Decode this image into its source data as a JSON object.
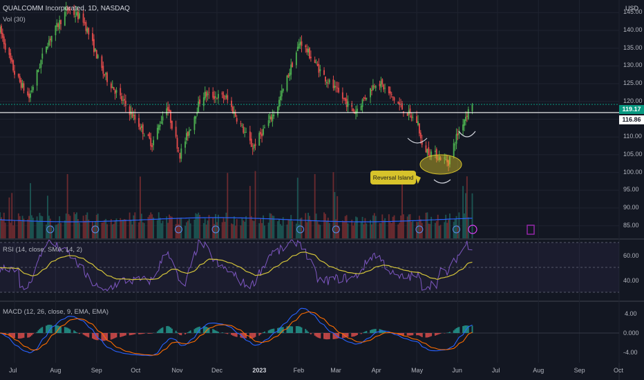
{
  "header": {
    "title": "QUALCOMM Incorporated, 1D, NASDAQ",
    "volume_label": "Vol (30)",
    "currency": "USD"
  },
  "price_axis": {
    "ticks": [
      "145.00",
      "140.00",
      "135.00",
      "130.00",
      "125.00",
      "120.00",
      "115.00",
      "110.00",
      "105.00",
      "100.00",
      "95.00",
      "90.00",
      "85.00"
    ],
    "last_price": "119.17",
    "level_price": "116.86"
  },
  "rsi_panel": {
    "title": "RSI (14, close, SMA, 14, 2)",
    "ticks": [
      "60.00",
      "40.00"
    ]
  },
  "macd_panel": {
    "title": "MACD (12, 26, close, 9, EMA, EMA)",
    "ticks": [
      "4.00",
      "0.000",
      "-4.00"
    ]
  },
  "annotation": {
    "text": "Reversal Island"
  },
  "time_axis": {
    "labels": [
      "Jul",
      "Aug",
      "Sep",
      "Oct",
      "Nov",
      "Dec",
      "2023",
      "Feb",
      "Mar",
      "Apr",
      "May",
      "Jun",
      "Jul",
      "Aug",
      "Sep",
      "Oct"
    ]
  },
  "colors": {
    "background": "#131722",
    "up": "#26a69a",
    "down": "#ef5350",
    "candle_up": "#4caf50",
    "candle_down": "#e04a4a",
    "rsi_line": "#7e57c2",
    "rsi_ma": "#d4c43a",
    "macd_line": "#2962ff",
    "signal_line": "#ff6d00",
    "volume_ma": "#2962ff",
    "annotation": "#d7c32b",
    "last_price_tag": "#089981"
  },
  "chart_data": {
    "type": "candlestick",
    "title": "QUALCOMM Incorporated, 1D, NASDAQ",
    "x_range": [
      "2022-06-20",
      "2023-10-01"
    ],
    "price_range": [
      85,
      146
    ],
    "price_path": [
      {
        "date": "2022-06-20",
        "close": 140
      },
      {
        "date": "2022-07-01",
        "close": 128
      },
      {
        "date": "2022-07-12",
        "close": 121
      },
      {
        "date": "2022-07-25",
        "close": 136
      },
      {
        "date": "2022-08-10",
        "close": 146
      },
      {
        "date": "2022-08-22",
        "close": 143
      },
      {
        "date": "2022-09-06",
        "close": 128
      },
      {
        "date": "2022-09-30",
        "close": 115
      },
      {
        "date": "2022-10-13",
        "close": 108
      },
      {
        "date": "2022-10-24",
        "close": 119
      },
      {
        "date": "2022-11-03",
        "close": 105
      },
      {
        "date": "2022-11-20",
        "close": 122
      },
      {
        "date": "2022-12-08",
        "close": 121
      },
      {
        "date": "2022-12-28",
        "close": 107
      },
      {
        "date": "2023-01-15",
        "close": 118
      },
      {
        "date": "2023-02-02",
        "close": 137
      },
      {
        "date": "2023-02-20",
        "close": 127
      },
      {
        "date": "2023-03-15",
        "close": 117
      },
      {
        "date": "2023-04-01",
        "close": 126
      },
      {
        "date": "2023-04-20",
        "close": 118
      },
      {
        "date": "2023-05-02",
        "close": 114
      },
      {
        "date": "2023-05-05",
        "close": 107
      },
      {
        "date": "2023-05-25",
        "close": 103
      },
      {
        "date": "2023-05-31",
        "close": 110
      },
      {
        "date": "2023-06-07",
        "close": 116
      },
      {
        "date": "2023-06-12",
        "close": 119.17
      }
    ],
    "last_price": 119.17,
    "horizontal_level": 116.86,
    "volume_ma": 90,
    "rsi": {
      "range": [
        25,
        75
      ],
      "last": 64,
      "levels": [
        70,
        50,
        30
      ]
    },
    "macd": {
      "range": [
        -5.5,
        5
      ],
      "last_macd": 1.5,
      "last_signal": 0.5
    },
    "grid": true
  }
}
